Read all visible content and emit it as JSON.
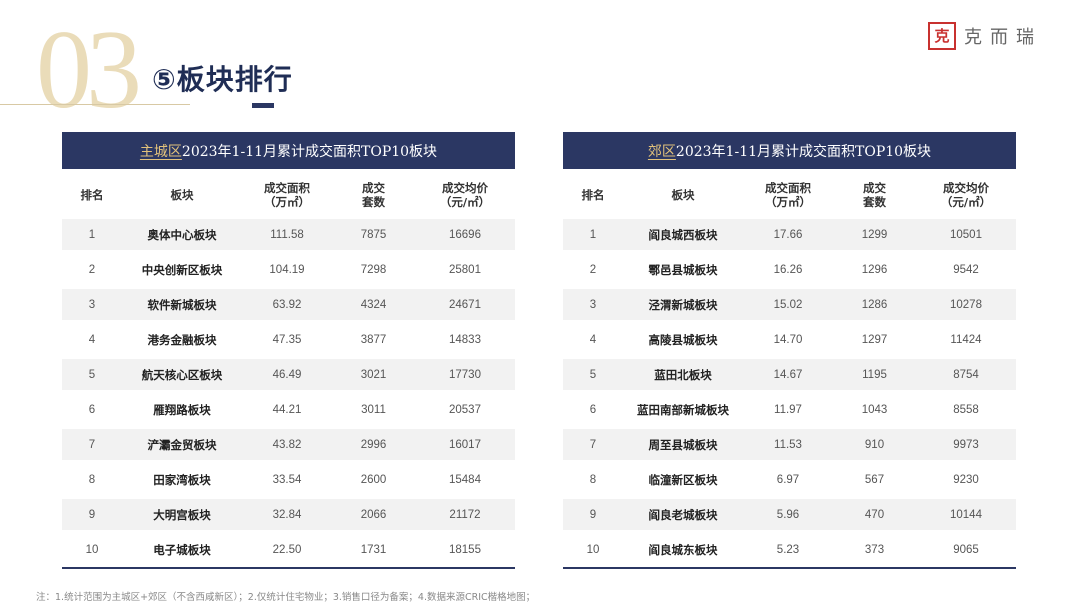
{
  "header": {
    "section_number": "03",
    "title": "⑤板块排行",
    "logo_seal_char": "克",
    "logo_text": "克而瑞"
  },
  "columns": {
    "rank": "排名",
    "block": "板块",
    "area_line1": "成交面积",
    "area_line2": "（万㎡）",
    "units_line1": "成交",
    "units_line2": "套数",
    "price_line1": "成交均价",
    "price_line2": "（元/㎡）"
  },
  "left_table": {
    "title_accent": "主城区",
    "title_rest": "2023年1-11月累计成交面积TOP10板块",
    "rows": [
      {
        "rank": "1",
        "name": "奥体中心板块",
        "area": "111.58",
        "units": "7875",
        "price": "16696"
      },
      {
        "rank": "2",
        "name": "中央创新区板块",
        "area": "104.19",
        "units": "7298",
        "price": "25801"
      },
      {
        "rank": "3",
        "name": "软件新城板块",
        "area": "63.92",
        "units": "4324",
        "price": "24671"
      },
      {
        "rank": "4",
        "name": "港务金融板块",
        "area": "47.35",
        "units": "3877",
        "price": "14833"
      },
      {
        "rank": "5",
        "name": "航天核心区板块",
        "area": "46.49",
        "units": "3021",
        "price": "17730"
      },
      {
        "rank": "6",
        "name": "雁翔路板块",
        "area": "44.21",
        "units": "3011",
        "price": "20537"
      },
      {
        "rank": "7",
        "name": "浐灞金贸板块",
        "area": "43.82",
        "units": "2996",
        "price": "16017"
      },
      {
        "rank": "8",
        "name": "田家湾板块",
        "area": "33.54",
        "units": "2600",
        "price": "15484"
      },
      {
        "rank": "9",
        "name": "大明宫板块",
        "area": "32.84",
        "units": "2066",
        "price": "21172"
      },
      {
        "rank": "10",
        "name": "电子城板块",
        "area": "22.50",
        "units": "1731",
        "price": "18155"
      }
    ]
  },
  "right_table": {
    "title_accent": "郊区",
    "title_rest": "2023年1-11月累计成交面积TOP10板块",
    "rows": [
      {
        "rank": "1",
        "name": "阎良城西板块",
        "area": "17.66",
        "units": "1299",
        "price": "10501"
      },
      {
        "rank": "2",
        "name": "鄠邑县城板块",
        "area": "16.26",
        "units": "1296",
        "price": "9542"
      },
      {
        "rank": "3",
        "name": "泾渭新城板块",
        "area": "15.02",
        "units": "1286",
        "price": "10278"
      },
      {
        "rank": "4",
        "name": "高陵县城板块",
        "area": "14.70",
        "units": "1297",
        "price": "11424"
      },
      {
        "rank": "5",
        "name": "蓝田北板块",
        "area": "14.67",
        "units": "1195",
        "price": "8754"
      },
      {
        "rank": "6",
        "name": "蓝田南部新城板块",
        "area": "11.97",
        "units": "1043",
        "price": "8558"
      },
      {
        "rank": "7",
        "name": "周至县城板块",
        "area": "11.53",
        "units": "910",
        "price": "9973"
      },
      {
        "rank": "8",
        "name": "临潼新区板块",
        "area": "6.97",
        "units": "567",
        "price": "9230"
      },
      {
        "rank": "9",
        "name": "阎良老城板块",
        "area": "5.96",
        "units": "470",
        "price": "10144"
      },
      {
        "rank": "10",
        "name": "阎良城东板块",
        "area": "5.23",
        "units": "373",
        "price": "9065"
      }
    ]
  },
  "footnote": "注：1.统计范围为主城区+郊区（不含西咸新区）；2.仅统计住宅物业；3.销售口径为备案；4.数据来源CRIC楷格地图；",
  "colors": {
    "navy": "#2b3763",
    "gold": "#e2c27b",
    "seal_red": "#c8312f"
  }
}
